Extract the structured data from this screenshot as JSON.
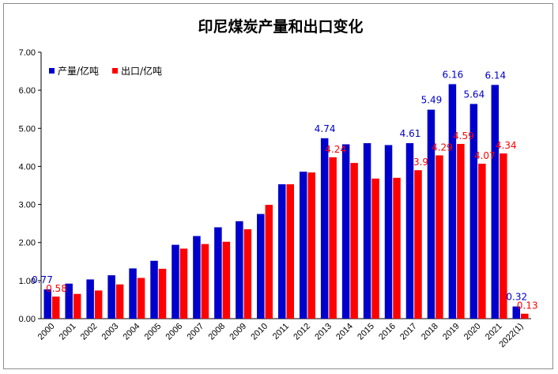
{
  "chart_data": {
    "type": "bar",
    "title": "印尼煤炭产量和出口变化",
    "xlabel": "",
    "ylabel": "",
    "ylim": [
      0,
      7
    ],
    "yticks": [
      "0.00",
      "1.00",
      "2.00",
      "3.00",
      "4.00",
      "5.00",
      "6.00",
      "7.00"
    ],
    "grid": false,
    "legend_position": "top-left",
    "categories": [
      "2000",
      "2001",
      "2002",
      "2003",
      "2004",
      "2005",
      "2006",
      "2007",
      "2008",
      "2009",
      "2010",
      "2011",
      "2012",
      "2013",
      "2014",
      "2015",
      "2016",
      "2017",
      "2018",
      "2019",
      "2020",
      "2021",
      "2022(1)"
    ],
    "series": [
      {
        "name": "产量/亿吨",
        "color": "#0000cc",
        "values": [
          0.77,
          0.92,
          1.03,
          1.14,
          1.32,
          1.52,
          1.94,
          2.17,
          2.4,
          2.56,
          2.75,
          3.53,
          3.86,
          4.74,
          4.58,
          4.61,
          4.56,
          4.61,
          5.49,
          6.16,
          5.64,
          6.14,
          0.32
        ],
        "labels": {
          "0": "0.77",
          "13": "4.74",
          "17": "4.61",
          "18": "5.49",
          "19": "6.16",
          "20": "5.64",
          "21": "6.14",
          "22": "0.32"
        }
      },
      {
        "name": "出口/亿吨",
        "color": "#ff0000",
        "values": [
          0.58,
          0.65,
          0.74,
          0.9,
          1.07,
          1.31,
          1.84,
          1.96,
          2.02,
          2.35,
          2.99,
          3.53,
          3.84,
          4.24,
          4.09,
          3.68,
          3.7,
          3.9,
          4.29,
          4.59,
          4.07,
          4.34,
          0.13
        ],
        "labels": {
          "0": "0.58",
          "13": "4.24",
          "17": "3.9",
          "18": "4.29",
          "19": "4.59",
          "20": "4.07",
          "21": "4.34",
          "22": "0.13"
        }
      }
    ]
  }
}
